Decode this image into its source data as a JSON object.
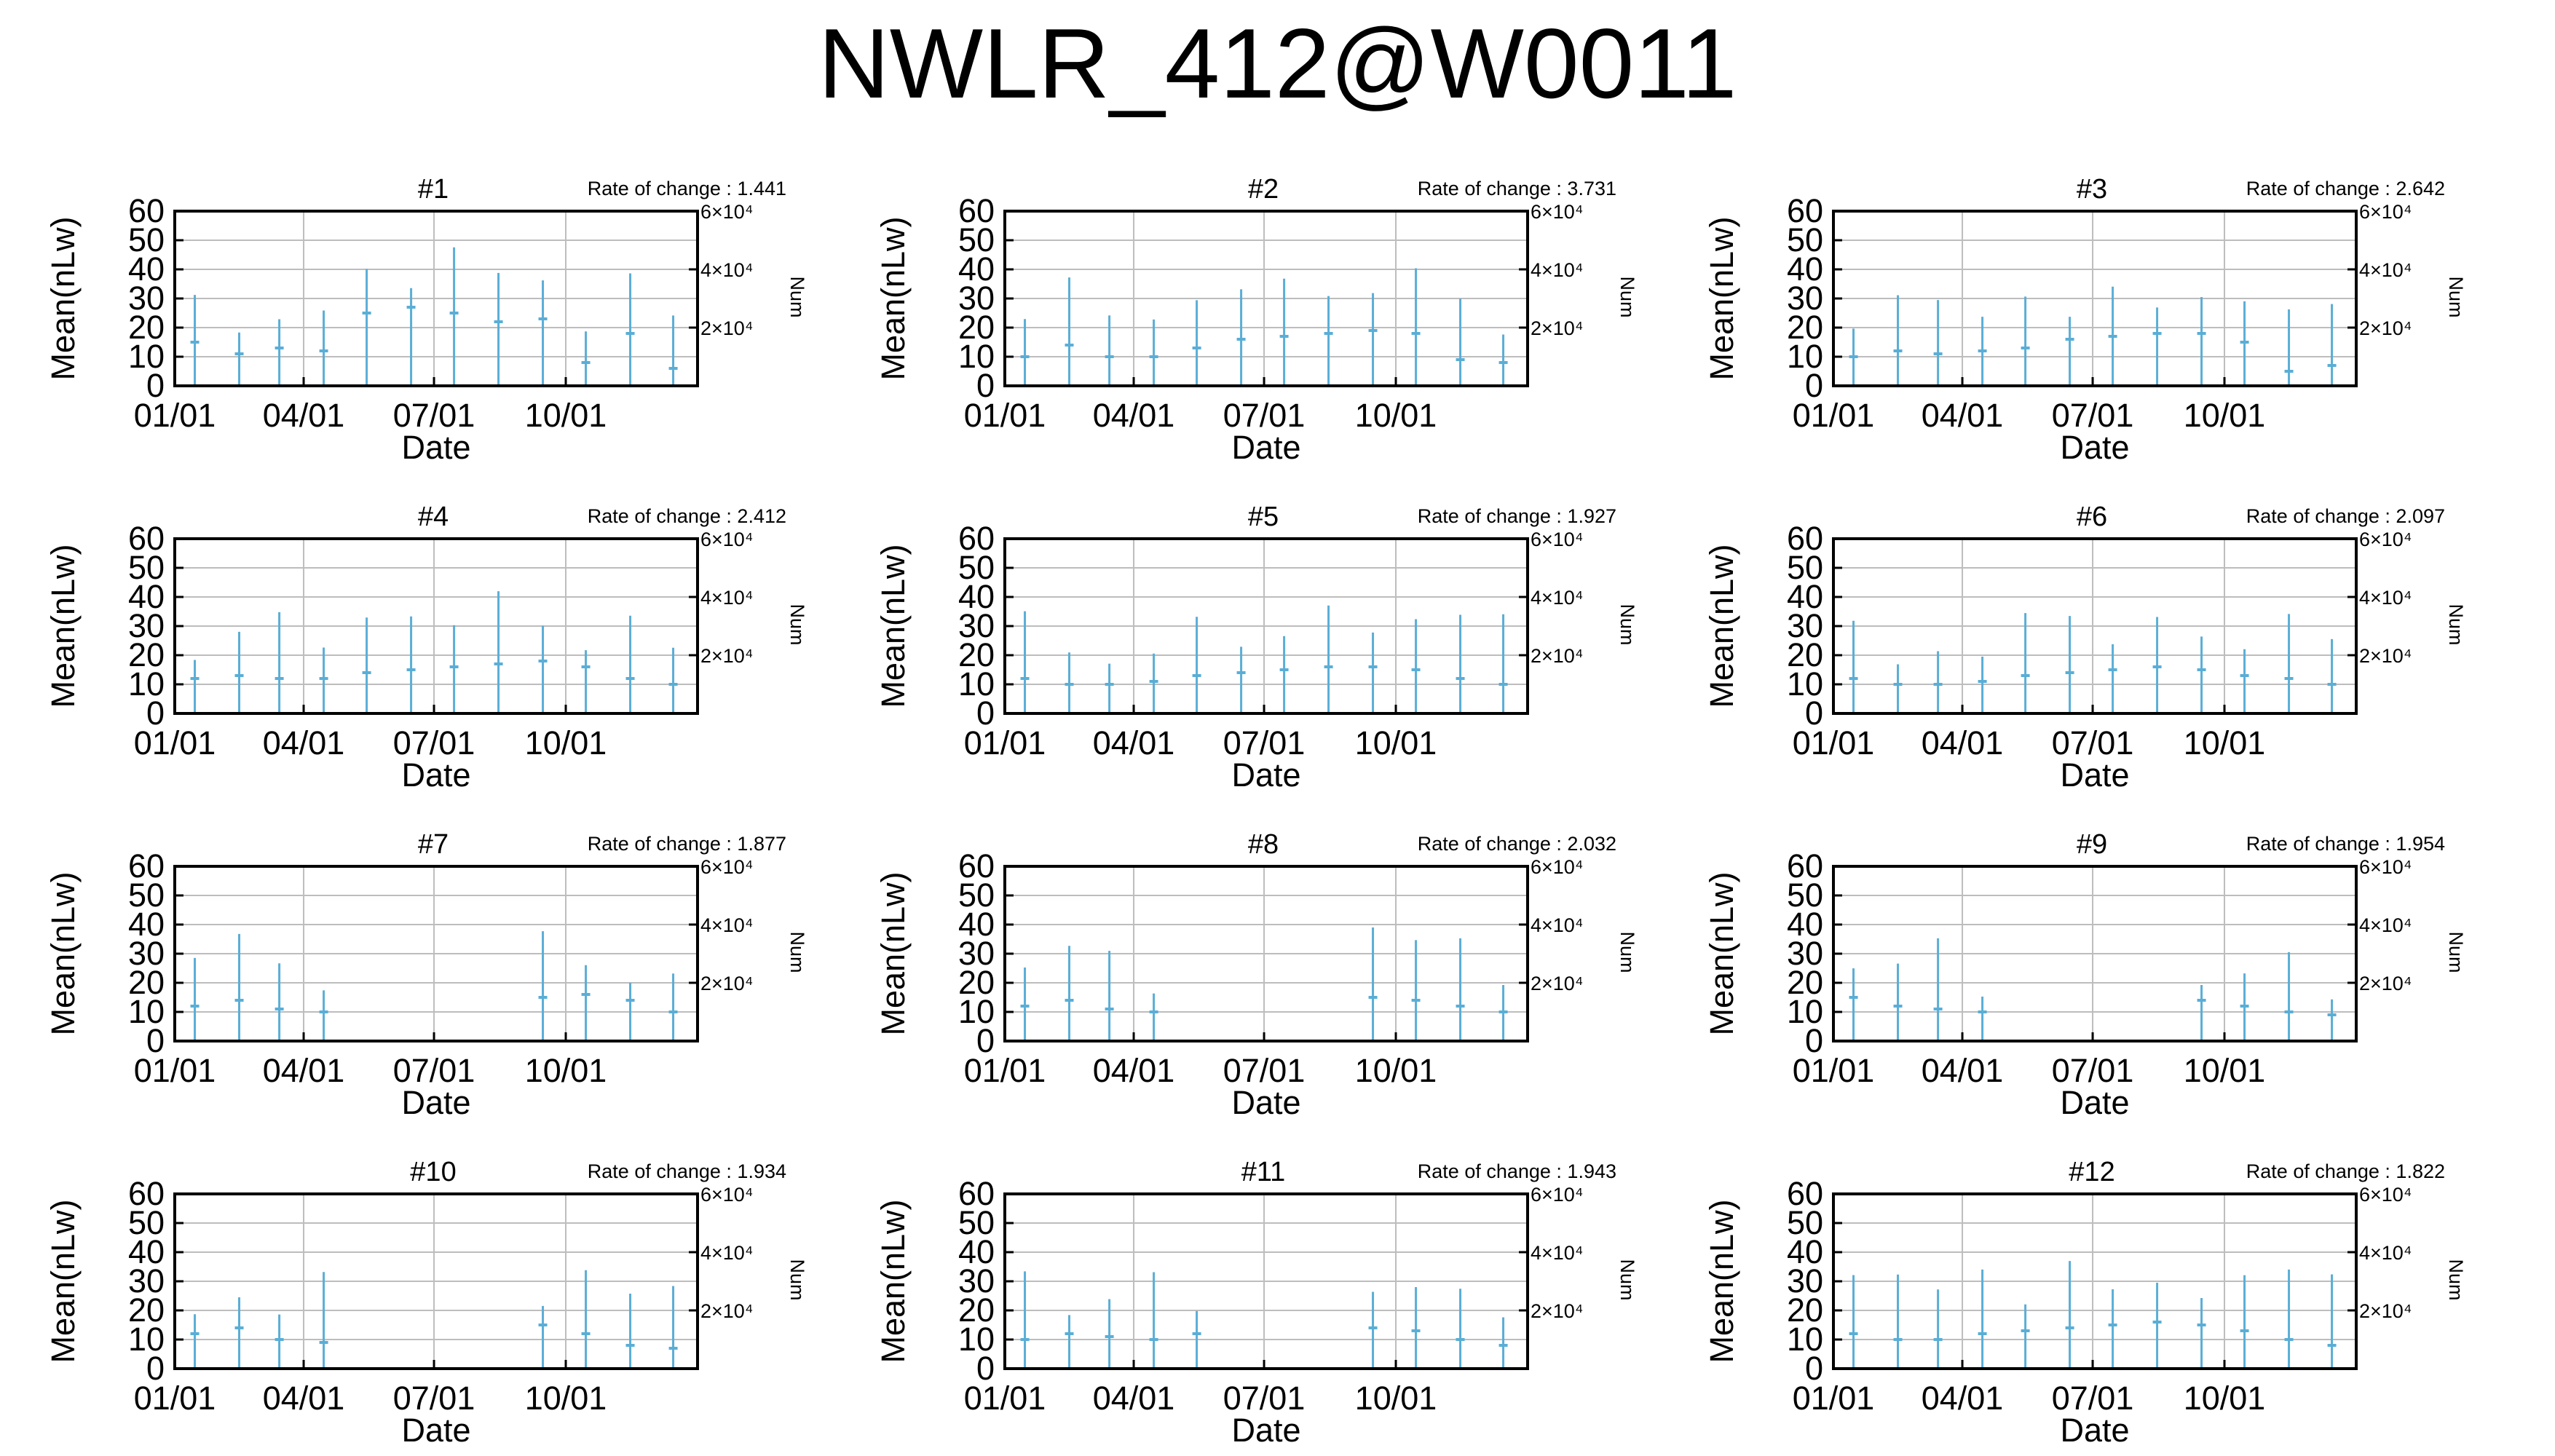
{
  "title": "NWLR_412@W0011",
  "common": {
    "y_label": "Mean(nLw)",
    "y2_label": "Num",
    "x_label": "Date",
    "y_ticks": [
      "0",
      "10",
      "20",
      "30",
      "40",
      "50",
      "60"
    ],
    "x_ticks": [
      "01/01",
      "04/01",
      "07/01",
      "10/01"
    ],
    "y2_ticks": [
      "2×10⁴",
      "4×10⁴",
      "6×10⁴"
    ],
    "rate_prefix": "Rate of change : "
  },
  "colors": {
    "data": "#5aaed6",
    "grid": "#bdbdbd",
    "axis": "#000000",
    "background": "#ffffff"
  },
  "chart_data": [
    {
      "type": "bar",
      "title": "#1",
      "rate_of_change": "1.441",
      "xlabel": "Date",
      "ylabel": "Mean(nLw)",
      "y2label": "Num",
      "ylim": [
        0,
        60
      ],
      "y2lim": [
        0,
        60000
      ],
      "x_range": [
        "01/01",
        "12/31"
      ],
      "grid": true,
      "x": [
        "01/01",
        "02/01",
        "03/01",
        "04/01",
        "05/01",
        "06/01",
        "07/01",
        "08/01",
        "09/01",
        "10/01",
        "11/01",
        "12/01"
      ],
      "y": [
        15,
        11,
        13,
        12,
        25,
        27,
        25,
        22,
        23,
        8,
        18,
        6
      ]
    },
    {
      "type": "bar",
      "title": "#2",
      "rate_of_change": "3.731",
      "xlabel": "Date",
      "ylabel": "Mean(nLw)",
      "y2label": "Num",
      "ylim": [
        0,
        60
      ],
      "y2lim": [
        0,
        60000
      ],
      "x_range": [
        "01/01",
        "12/31"
      ],
      "grid": true,
      "x": [
        "01/01",
        "02/01",
        "03/01",
        "04/01",
        "05/01",
        "06/01",
        "07/01",
        "08/01",
        "09/01",
        "10/01",
        "11/01",
        "12/01"
      ],
      "y": [
        10,
        14,
        10,
        10,
        13,
        16,
        17,
        18,
        19,
        18,
        9,
        8
      ]
    },
    {
      "type": "bar",
      "title": "#3",
      "rate_of_change": "2.642",
      "xlabel": "Date",
      "ylabel": "Mean(nLw)",
      "y2label": "Num",
      "ylim": [
        0,
        60
      ],
      "y2lim": [
        0,
        60000
      ],
      "x_range": [
        "01/01",
        "12/31"
      ],
      "grid": true,
      "x": [
        "01/01",
        "02/01",
        "03/01",
        "04/01",
        "05/01",
        "06/01",
        "07/01",
        "08/01",
        "09/01",
        "10/01",
        "11/01",
        "12/01"
      ],
      "y": [
        10,
        12,
        11,
        12,
        13,
        16,
        17,
        18,
        18,
        15,
        5,
        7
      ]
    },
    {
      "type": "bar",
      "title": "#4",
      "rate_of_change": "2.412",
      "xlabel": "Date",
      "ylabel": "Mean(nLw)",
      "y2label": "Num",
      "ylim": [
        0,
        60
      ],
      "y2lim": [
        0,
        60000
      ],
      "x_range": [
        "01/01",
        "12/31"
      ],
      "grid": true,
      "x": [
        "01/01",
        "02/01",
        "03/01",
        "04/01",
        "05/01",
        "06/01",
        "07/01",
        "08/01",
        "09/01",
        "10/01",
        "11/01",
        "12/01"
      ],
      "y": [
        12,
        13,
        12,
        12,
        14,
        15,
        16,
        17,
        18,
        16,
        12,
        10
      ]
    },
    {
      "type": "bar",
      "title": "#5",
      "rate_of_change": "1.927",
      "xlabel": "Date",
      "ylabel": "Mean(nLw)",
      "y2label": "Num",
      "ylim": [
        0,
        60
      ],
      "y2lim": [
        0,
        60000
      ],
      "x_range": [
        "01/01",
        "12/31"
      ],
      "grid": true,
      "x": [
        "01/01",
        "02/01",
        "03/01",
        "04/01",
        "05/01",
        "06/01",
        "07/01",
        "08/01",
        "09/01",
        "10/01",
        "11/01",
        "12/01"
      ],
      "y": [
        12,
        10,
        10,
        11,
        13,
        14,
        15,
        16,
        16,
        15,
        12,
        10
      ]
    },
    {
      "type": "bar",
      "title": "#6",
      "rate_of_change": "2.097",
      "xlabel": "Date",
      "ylabel": "Mean(nLw)",
      "y2label": "Num",
      "ylim": [
        0,
        60
      ],
      "y2lim": [
        0,
        60000
      ],
      "x_range": [
        "01/01",
        "12/31"
      ],
      "grid": true,
      "x": [
        "01/01",
        "02/01",
        "03/01",
        "04/01",
        "05/01",
        "06/01",
        "07/01",
        "08/01",
        "09/01",
        "10/01",
        "11/01",
        "12/01"
      ],
      "y": [
        12,
        10,
        10,
        11,
        13,
        14,
        15,
        16,
        15,
        13,
        12,
        10
      ]
    },
    {
      "type": "bar",
      "title": "#7",
      "rate_of_change": "1.877",
      "xlabel": "Date",
      "ylabel": "Mean(nLw)",
      "y2label": "Num",
      "ylim": [
        0,
        60
      ],
      "y2lim": [
        0,
        60000
      ],
      "x_range": [
        "01/01",
        "12/31"
      ],
      "grid": true,
      "x": [
        "01/01",
        "02/01",
        "03/01",
        "04/01",
        "05/01",
        "06/01",
        "07/01",
        "08/01",
        "09/01",
        "10/01",
        "11/01",
        "12/01"
      ],
      "y": [
        12,
        14,
        11,
        10,
        null,
        null,
        null,
        null,
        15,
        16,
        14,
        10
      ]
    },
    {
      "type": "bar",
      "title": "#8",
      "rate_of_change": "2.032",
      "xlabel": "Date",
      "ylabel": "Mean(nLw)",
      "y2label": "Num",
      "ylim": [
        0,
        60
      ],
      "y2lim": [
        0,
        60000
      ],
      "x_range": [
        "01/01",
        "12/31"
      ],
      "grid": true,
      "x": [
        "01/01",
        "02/01",
        "03/01",
        "04/01",
        "05/01",
        "06/01",
        "07/01",
        "08/01",
        "09/01",
        "10/01",
        "11/01",
        "12/01"
      ],
      "y": [
        12,
        14,
        11,
        10,
        null,
        null,
        null,
        null,
        15,
        14,
        12,
        10
      ]
    },
    {
      "type": "bar",
      "title": "#9",
      "rate_of_change": "1.954",
      "xlabel": "Date",
      "ylabel": "Mean(nLw)",
      "y2label": "Num",
      "ylim": [
        0,
        60
      ],
      "y2lim": [
        0,
        60000
      ],
      "x_range": [
        "01/01",
        "12/31"
      ],
      "grid": true,
      "x": [
        "01/01",
        "02/01",
        "03/01",
        "04/01",
        "05/01",
        "06/01",
        "07/01",
        "08/01",
        "09/01",
        "10/01",
        "11/01",
        "12/01"
      ],
      "y": [
        15,
        12,
        11,
        10,
        null,
        null,
        null,
        null,
        14,
        12,
        10,
        9
      ]
    },
    {
      "type": "bar",
      "title": "#10",
      "rate_of_change": "1.934",
      "xlabel": "Date",
      "ylabel": "Mean(nLw)",
      "y2label": "Num",
      "ylim": [
        0,
        60
      ],
      "y2lim": [
        0,
        60000
      ],
      "x_range": [
        "01/01",
        "12/31"
      ],
      "grid": true,
      "x": [
        "01/01",
        "02/01",
        "03/01",
        "04/01",
        "05/01",
        "06/01",
        "07/01",
        "08/01",
        "09/01",
        "10/01",
        "11/01",
        "12/01"
      ],
      "y": [
        12,
        14,
        10,
        9,
        null,
        null,
        null,
        null,
        15,
        12,
        8,
        7
      ]
    },
    {
      "type": "bar",
      "title": "#11",
      "rate_of_change": "1.943",
      "xlabel": "Date",
      "ylabel": "Mean(nLw)",
      "y2label": "Num",
      "ylim": [
        0,
        60
      ],
      "y2lim": [
        0,
        60000
      ],
      "x_range": [
        "01/01",
        "12/31"
      ],
      "grid": true,
      "x": [
        "01/01",
        "02/01",
        "03/01",
        "04/01",
        "05/01",
        "06/01",
        "07/01",
        "08/01",
        "09/01",
        "10/01",
        "11/01",
        "12/01"
      ],
      "y": [
        10,
        12,
        11,
        10,
        12,
        null,
        null,
        null,
        14,
        13,
        10,
        8
      ]
    },
    {
      "type": "bar",
      "title": "#12",
      "rate_of_change": "1.822",
      "xlabel": "Date",
      "ylabel": "Mean(nLw)",
      "y2label": "Num",
      "ylim": [
        0,
        60
      ],
      "y2lim": [
        0,
        60000
      ],
      "x_range": [
        "01/01",
        "12/31"
      ],
      "grid": true,
      "x": [
        "01/01",
        "02/01",
        "03/01",
        "04/01",
        "05/01",
        "06/01",
        "07/01",
        "08/01",
        "09/01",
        "10/01",
        "11/01",
        "12/01"
      ],
      "y": [
        12,
        10,
        10,
        12,
        13,
        14,
        15,
        16,
        15,
        13,
        10,
        8
      ]
    }
  ]
}
